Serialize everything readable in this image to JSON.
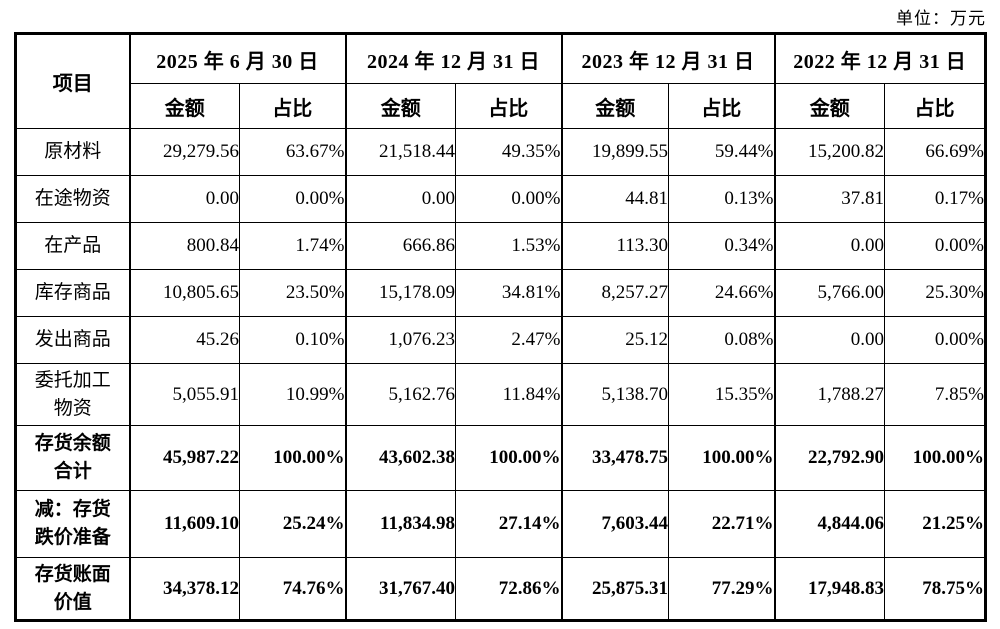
{
  "unit_label": "单位：万元",
  "table": {
    "item_header": "项目",
    "period_headers": [
      "2025 年 6 月 30 日",
      "2024 年 12 月 31 日",
      "2023 年 12 月 31 日",
      "2022 年 12 月 31 日"
    ],
    "sub_headers": {
      "amount": "金额",
      "ratio": "占比"
    },
    "rows": [
      {
        "label": "原材料",
        "bold": false,
        "values": [
          "29,279.56",
          "63.67%",
          "21,518.44",
          "49.35%",
          "19,899.55",
          "59.44%",
          "15,200.82",
          "66.69%"
        ]
      },
      {
        "label": "在途物资",
        "bold": false,
        "values": [
          "0.00",
          "0.00%",
          "0.00",
          "0.00%",
          "44.81",
          "0.13%",
          "37.81",
          "0.17%"
        ]
      },
      {
        "label": "在产品",
        "bold": false,
        "values": [
          "800.84",
          "1.74%",
          "666.86",
          "1.53%",
          "113.30",
          "0.34%",
          "0.00",
          "0.00%"
        ]
      },
      {
        "label": "库存商品",
        "bold": false,
        "values": [
          "10,805.65",
          "23.50%",
          "15,178.09",
          "34.81%",
          "8,257.27",
          "24.66%",
          "5,766.00",
          "25.30%"
        ]
      },
      {
        "label": "发出商品",
        "bold": false,
        "values": [
          "45.26",
          "0.10%",
          "1,076.23",
          "2.47%",
          "25.12",
          "0.08%",
          "0.00",
          "0.00%"
        ]
      },
      {
        "label": "委托加工\n物资",
        "bold": false,
        "values": [
          "5,055.91",
          "10.99%",
          "5,162.76",
          "11.84%",
          "5,138.70",
          "15.35%",
          "1,788.27",
          "7.85%"
        ]
      },
      {
        "label": "存货余额\n合计",
        "bold": true,
        "values": [
          "45,987.22",
          "100.00%",
          "43,602.38",
          "100.00%",
          "33,478.75",
          "100.00%",
          "22,792.90",
          "100.00%"
        ]
      },
      {
        "label": "减：存货\n跌价准备",
        "bold": true,
        "values": [
          "11,609.10",
          "25.24%",
          "11,834.98",
          "27.14%",
          "7,603.44",
          "22.71%",
          "4,844.06",
          "21.25%"
        ]
      },
      {
        "label": "存货账面\n价值",
        "bold": true,
        "values": [
          "34,378.12",
          "74.76%",
          "31,767.40",
          "72.86%",
          "25,875.31",
          "77.29%",
          "17,948.83",
          "78.75%"
        ]
      }
    ]
  }
}
